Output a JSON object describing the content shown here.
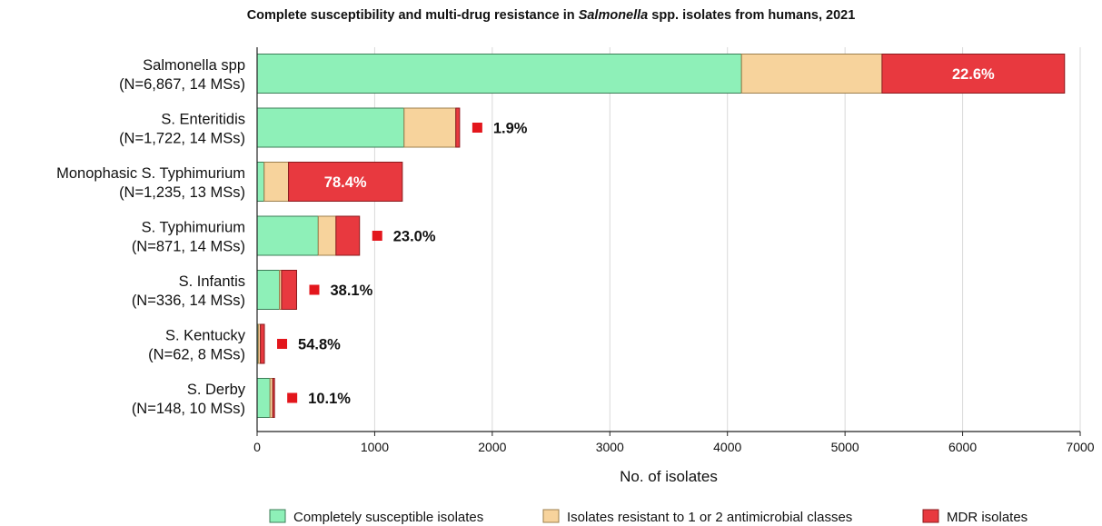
{
  "chart_data": {
    "type": "bar",
    "orientation": "horizontal",
    "stacked": true,
    "title_prefix": "Complete susceptibility and multi-drug resistance in ",
    "title_italic": "Salmonella",
    "title_suffix": " spp. isolates from humans, 2021",
    "xlabel": "No. of isolates",
    "xlim": [
      0,
      7000
    ],
    "xticks": [
      0,
      1000,
      2000,
      3000,
      4000,
      5000,
      6000,
      7000
    ],
    "grid": "vertical",
    "legend_position": "bottom",
    "categories": [
      {
        "name": "Salmonella spp",
        "detail": "(N=6,867, 14 MSs)",
        "pct": "22.6%",
        "pct_inside": true
      },
      {
        "name": "S. Enteritidis",
        "detail": "(N=1,722, 14 MSs)",
        "pct": "1.9%",
        "pct_inside": false
      },
      {
        "name": "Monophasic S. Typhimurium",
        "detail": "(N=1,235, 13 MSs)",
        "pct": "78.4%",
        "pct_inside": true
      },
      {
        "name": "S. Typhimurium",
        "detail": "(N=871, 14 MSs)",
        "pct": "23.0%",
        "pct_inside": false
      },
      {
        "name": "S. Infantis",
        "detail": "(N=336, 14 MSs)",
        "pct": "38.1%",
        "pct_inside": false
      },
      {
        "name": "S. Kentucky",
        "detail": "(N=62, 8 MSs)",
        "pct": "54.8%",
        "pct_inside": false
      },
      {
        "name": "S. Derby",
        "detail": "(N=148, 10 MSs)",
        "pct": "10.1%",
        "pct_inside": false
      }
    ],
    "series": [
      {
        "name": "Completely susceptible isolates",
        "color": "#8ef0b8",
        "values": [
          4120,
          1250,
          60,
          520,
          190,
          10,
          110
        ]
      },
      {
        "name": "Isolates resistant to 1 or 2 antimicrobial classes",
        "color": "#f7d39c",
        "values": [
          1195,
          440,
          207,
          151,
          18,
          18,
          23
        ]
      },
      {
        "name": "MDR isolates",
        "color": "#e8393f",
        "values": [
          1552,
          32,
          968,
          200,
          128,
          34,
          15
        ]
      }
    ],
    "marker_color": "#e3161c"
  }
}
